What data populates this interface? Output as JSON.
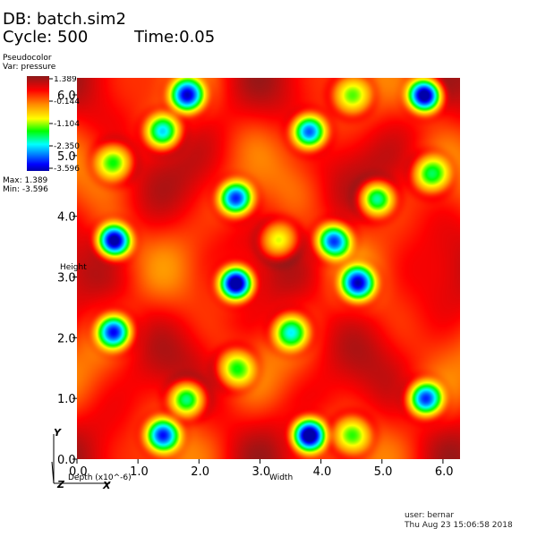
{
  "header": {
    "db": "DB: batch.sim2",
    "cycle": "Cycle: 500",
    "time": "Time:0.05"
  },
  "legend": {
    "plot_type": "Pseudocolor",
    "variable": "Var: pressure",
    "ticks": [
      "1.389",
      "-0.144",
      "-1.104",
      "-2.350",
      "-3.596"
    ],
    "max": "Max:  1.389",
    "min": "Min: -3.596",
    "colormap": [
      "#0000aa",
      "#0000ff",
      "#00ffff",
      "#00ff00",
      "#ffff00",
      "#ff8c00",
      "#ff0000",
      "#8b1a1a"
    ]
  },
  "footer": {
    "user": "user: bernar",
    "date": "Thu Aug 23 15:06:58 2018"
  },
  "chart_data": {
    "type": "heatmap",
    "variable": "pressure",
    "xlabel": "Width",
    "ylabel": "Height",
    "zlabel": "Depth (x10^-6)",
    "xlim": [
      0.0,
      6.28
    ],
    "ylim": [
      0.0,
      6.28
    ],
    "xticks": [
      "0.0",
      "1.0",
      "2.0",
      "3.0",
      "4.0",
      "5.0",
      "6.0"
    ],
    "yticks": [
      "0.0",
      "1.0",
      "2.0",
      "3.0",
      "4.0",
      "5.0",
      "6.0"
    ],
    "value_range": [
      -3.596,
      1.389
    ],
    "low_spots": [
      {
        "x": 0.6,
        "y": 3.6,
        "v": -3.4
      },
      {
        "x": 2.6,
        "y": 2.9,
        "v": -3.596
      },
      {
        "x": 5.7,
        "y": 6.0,
        "v": -3.5
      },
      {
        "x": 3.8,
        "y": 0.4,
        "v": -3.5
      },
      {
        "x": 1.8,
        "y": 6.0,
        "v": -2.4
      },
      {
        "x": 2.6,
        "y": 4.3,
        "v": -2.4
      },
      {
        "x": 0.6,
        "y": 2.1,
        "v": -2.3
      },
      {
        "x": 3.8,
        "y": 5.4,
        "v": -2.4
      },
      {
        "x": 4.6,
        "y": 2.9,
        "v": -2.3
      },
      {
        "x": 4.2,
        "y": 3.6,
        "v": -2.2
      },
      {
        "x": 5.7,
        "y": 1.0,
        "v": -2.3
      },
      {
        "x": 1.4,
        "y": 0.4,
        "v": -2.3
      },
      {
        "x": 1.4,
        "y": 5.4,
        "v": -1.6
      },
      {
        "x": 4.9,
        "y": 4.3,
        "v": -1.6
      },
      {
        "x": 1.8,
        "y": 1.0,
        "v": -1.5
      },
      {
        "x": 3.5,
        "y": 2.1,
        "v": -1.2
      },
      {
        "x": 5.8,
        "y": 4.7,
        "v": -0.8
      },
      {
        "x": 0.6,
        "y": 4.9,
        "v": -0.8
      },
      {
        "x": 2.6,
        "y": 1.5,
        "v": -0.6
      },
      {
        "x": 3.3,
        "y": 3.6,
        "v": -0.6
      },
      {
        "x": 4.5,
        "y": 0.4,
        "v": -0.5
      },
      {
        "x": 4.5,
        "y": 6.0,
        "v": -0.4
      }
    ]
  }
}
